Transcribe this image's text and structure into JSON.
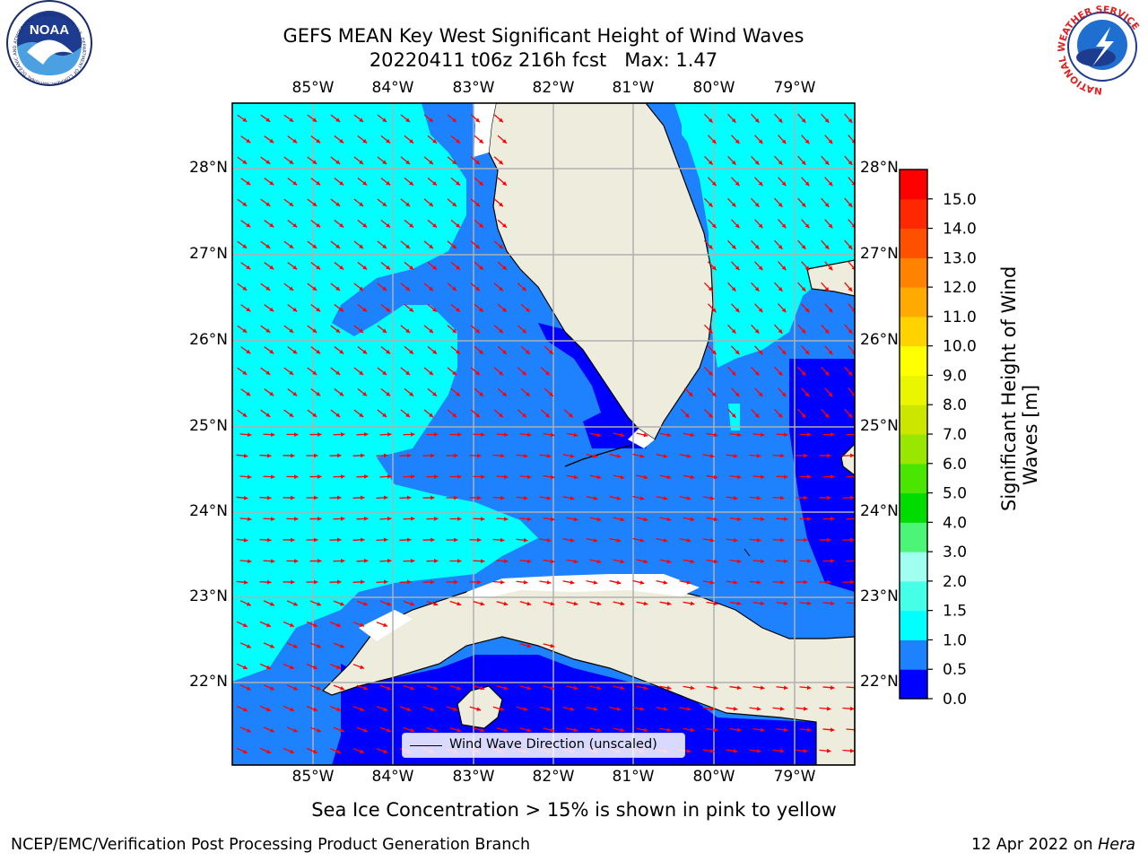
{
  "header": {
    "title_line1": "GEFS MEAN Key West Significant Height of Wind Waves",
    "title_line2": "20220411 t06z 216h fcst   Max: 1.47"
  },
  "logos": {
    "noaa": {
      "icon": "noaa-logo-icon",
      "text": "NOAA",
      "ring_text": "NATIONAL OCEANIC AND ATMOSPHERIC ADMINISTRATION · U.S. DEPARTMENT OF COMMERCE"
    },
    "nws": {
      "icon": "nws-logo-icon",
      "ring_text": "NATIONAL WEATHER SERVICE"
    }
  },
  "map": {
    "lon_labels": [
      "85°W",
      "84°W",
      "83°W",
      "82°W",
      "81°W",
      "80°W",
      "79°W"
    ],
    "lat_labels": [
      "28°N",
      "27°N",
      "26°N",
      "25°N",
      "24°N",
      "23°N",
      "22°N"
    ],
    "legend_label": "Wind Wave Direction (unscaled)",
    "arrow_color": "#ff0000",
    "land_color": "#eeecdc",
    "grid_color": "#b0b0b0"
  },
  "colorbar": {
    "title_line1": "Significant Height of Wind",
    "title_line2": "Waves [m]",
    "tick_labels": [
      "0.0",
      "0.5",
      "1.0",
      "1.5",
      "2.0",
      "3.0",
      "4.0",
      "5.0",
      "6.0",
      "7.0",
      "8.0",
      "9.0",
      "10.0",
      "11.0",
      "12.0",
      "13.0",
      "14.0",
      "15.0"
    ],
    "colors": [
      "#0000ff",
      "#1e82ff",
      "#00ffff",
      "#45ffe6",
      "#a0fff0",
      "#4cf578",
      "#00dc00",
      "#4ae600",
      "#99e600",
      "#cce600",
      "#eaf500",
      "#ffff00",
      "#ffd200",
      "#ffaa00",
      "#ff8200",
      "#ff5000",
      "#ff2800",
      "#ff0000"
    ]
  },
  "footer": {
    "note": "Sea Ice Concentration > 15% is shown in pink to yellow",
    "left": "NCEP/EMC/Verification Post Processing Product Generation Branch",
    "right_prefix": "12 Apr 2022 on ",
    "right_host": "Hera"
  }
}
